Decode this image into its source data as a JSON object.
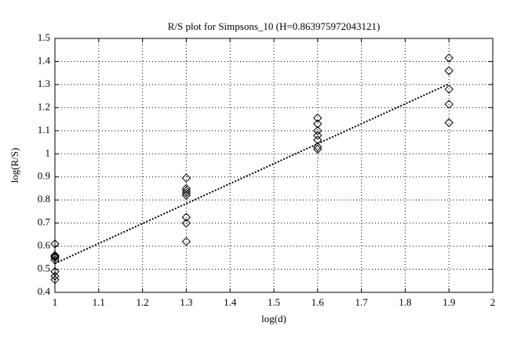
{
  "chart_data": {
    "type": "scatter",
    "title": "R/S plot for Simpsons_10 (H=0.863975972043121)",
    "xlabel": "log(d)",
    "ylabel": "log(R/S)",
    "x": [
      1,
      1,
      1,
      1,
      1,
      1,
      1,
      1,
      1.3,
      1.3,
      1.3,
      1.3,
      1.3,
      1.3,
      1.3,
      1.3,
      1.6,
      1.6,
      1.6,
      1.6,
      1.6,
      1.6,
      1.6,
      1.9,
      1.9,
      1.9,
      1.9,
      1.9
    ],
    "y": [
      0.61,
      0.56,
      0.555,
      0.55,
      0.54,
      0.49,
      0.47,
      0.455,
      0.895,
      0.85,
      0.84,
      0.83,
      0.82,
      0.725,
      0.7,
      0.62,
      1.155,
      1.13,
      1.1,
      1.08,
      1.06,
      1.03,
      1.02,
      1.415,
      1.36,
      1.28,
      1.215,
      1.135
    ],
    "color": "#000000",
    "fit_line": {
      "x": [
        1,
        1.9
      ],
      "y": [
        0.525,
        1.303
      ]
    },
    "xlim": [
      1,
      2
    ],
    "xticks": [
      1,
      1.1,
      1.2,
      1.3,
      1.4,
      1.5,
      1.6,
      1.7,
      1.8,
      1.9,
      2
    ],
    "ylim": [
      0.4,
      1.5
    ],
    "yticks": [
      0.4,
      0.5,
      0.6,
      0.7,
      0.8,
      0.9,
      1,
      1.1,
      1.2,
      1.3,
      1.4,
      1.5
    ],
    "grid": true
  }
}
